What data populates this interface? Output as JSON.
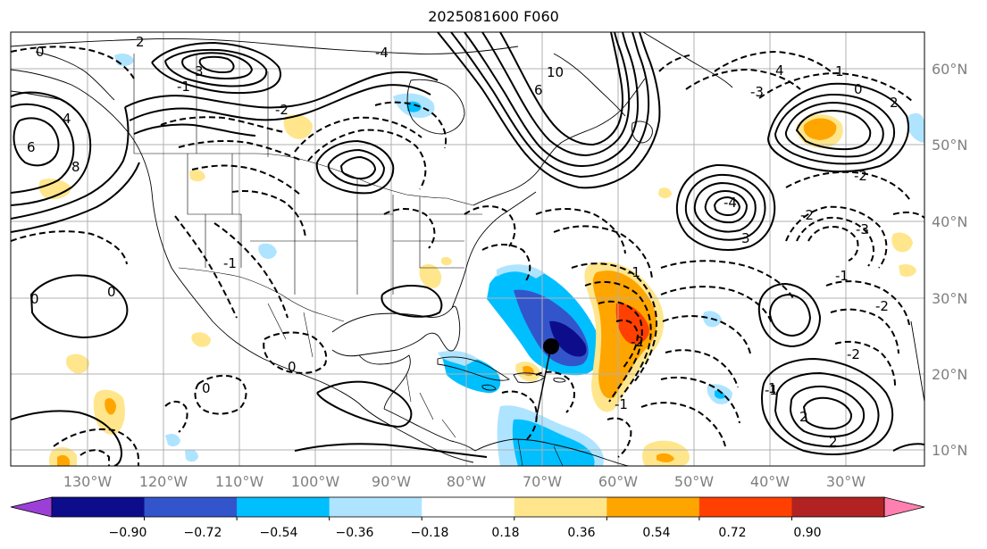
{
  "title": "2025081600 F060",
  "longitude_labels": [
    "130°W",
    "120°W",
    "110°W",
    "100°W",
    "90°W",
    "80°W",
    "70°W",
    "60°W",
    "50°W",
    "40°W",
    "30°W"
  ],
  "latitude_labels": [
    "60°N",
    "50°N",
    "40°N",
    "30°N",
    "20°N",
    "10°N"
  ],
  "colorbar": {
    "ticks": [
      "−0.90",
      "−0.72",
      "−0.54",
      "−0.36",
      "−0.18",
      "0.18",
      "0.36",
      "0.54",
      "0.72",
      "0.90"
    ],
    "colors": [
      "#9b3fd6",
      "#0d0d8c",
      "#3355cc",
      "#00bfff",
      "#aee4ff",
      "#ffffff",
      "#ffe68c",
      "#ffa500",
      "#ff4000",
      "#b22222",
      "#ff80b0"
    ]
  },
  "contour_labels": [
    "0",
    "2",
    "4",
    "6",
    "8",
    "10",
    "-1",
    "-2",
    "-3",
    "-4",
    "1",
    "3",
    "4",
    "6",
    "0",
    "2",
    "-2",
    "-3",
    "-1",
    "-2",
    "-1",
    "2",
    "0",
    "0",
    "0",
    "-1",
    "-2",
    "-1",
    "0",
    "-1",
    "-2",
    "3",
    "-2",
    "1",
    "2",
    "-4"
  ],
  "storm_marker": {
    "lon": -71,
    "lat": 23.5
  }
}
